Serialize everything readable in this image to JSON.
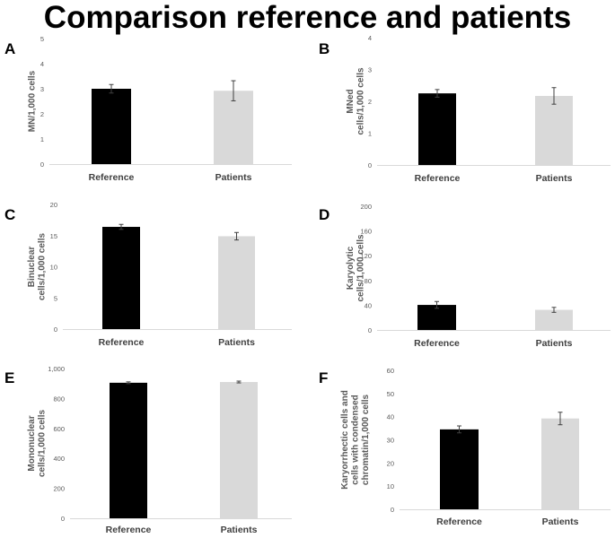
{
  "title": "Comparison reference and patients",
  "chart_data": [
    {
      "type": "bar",
      "panel": "A",
      "categories": [
        "Reference",
        "Patients"
      ],
      "values": [
        3.0,
        2.92
      ],
      "errors": [
        0.17,
        0.4
      ],
      "colors": [
        "#000000",
        "#d9d9d9"
      ],
      "ylabel": [
        "MN/1,000 cells"
      ],
      "ylim": [
        0,
        5
      ],
      "yticks": [
        "0",
        "1",
        "2",
        "3",
        "4",
        "5"
      ]
    },
    {
      "type": "bar",
      "panel": "B",
      "categories": [
        "Reference",
        "Patients"
      ],
      "values": [
        2.25,
        2.17
      ],
      "errors": [
        0.12,
        0.26
      ],
      "colors": [
        "#000000",
        "#d9d9d9"
      ],
      "ylabel": [
        "MNed",
        "cells/1,000 cells"
      ],
      "ylim": [
        0,
        4
      ],
      "yticks": [
        "0",
        "1",
        "2",
        "3",
        "4"
      ]
    },
    {
      "type": "bar",
      "panel": "C",
      "categories": [
        "Reference",
        "Patients"
      ],
      "values": [
        16.4,
        14.9
      ],
      "errors": [
        0.4,
        0.6
      ],
      "colors": [
        "#000000",
        "#d9d9d9"
      ],
      "ylabel": [
        "Binuclear",
        "cells/1,000 cells"
      ],
      "ylim": [
        0,
        20
      ],
      "yticks": [
        "0",
        "5",
        "10",
        "15",
        "20"
      ]
    },
    {
      "type": "bar",
      "panel": "D",
      "categories": [
        "Reference",
        "Patients"
      ],
      "values": [
        40.5,
        32.5
      ],
      "errors": [
        5.5,
        4.0
      ],
      "colors": [
        "#000000",
        "#d9d9d9"
      ],
      "ylabel": [
        "Karyolytic",
        "cells/1,000 cells"
      ],
      "ylim": [
        0,
        200
      ],
      "yticks": [
        "0",
        "40",
        "80",
        "120",
        "160",
        "200"
      ]
    },
    {
      "type": "bar",
      "panel": "E",
      "categories": [
        "Reference",
        "Patients"
      ],
      "values": [
        905,
        910
      ],
      "errors": [
        6,
        6
      ],
      "colors": [
        "#000000",
        "#d9d9d9"
      ],
      "ylabel": [
        "Mononuclear",
        "cells/1,000 cells"
      ],
      "ylim": [
        0,
        1000
      ],
      "yticks": [
        "0",
        "200",
        "400",
        "600",
        "800",
        "1,000"
      ]
    },
    {
      "type": "bar",
      "panel": "F",
      "categories": [
        "Reference",
        "Patients"
      ],
      "values": [
        34.5,
        39.2
      ],
      "errors": [
        1.5,
        2.7
      ],
      "colors": [
        "#000000",
        "#d9d9d9"
      ],
      "ylabel": [
        "Karyorrhectic cells and",
        "cells with condensed",
        "chromatin/1,000 cells"
      ],
      "ylim": [
        0,
        60
      ],
      "yticks": [
        "0",
        "10",
        "20",
        "30",
        "40",
        "50",
        "60"
      ]
    }
  ]
}
